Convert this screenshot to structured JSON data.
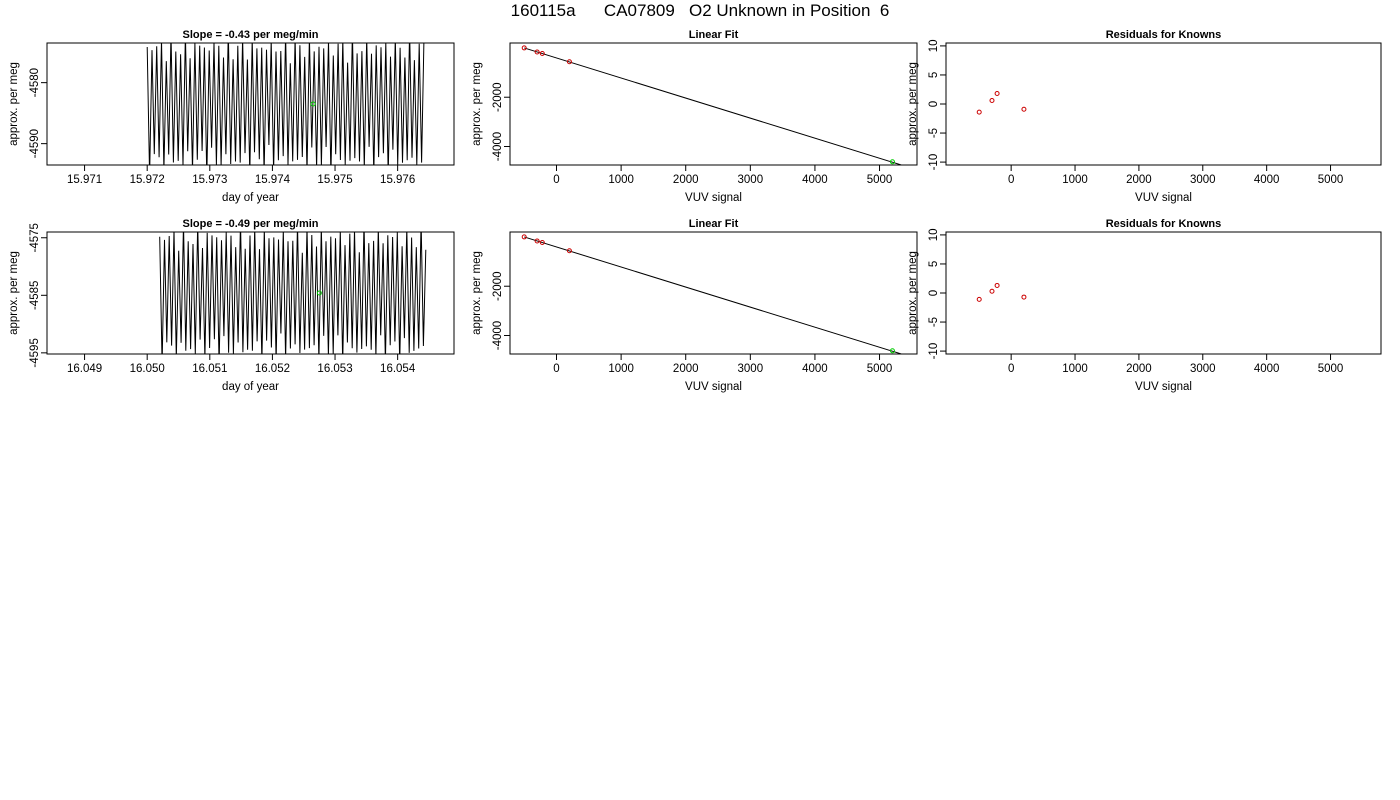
{
  "header": {
    "title": "160115a      CA07809   O2 Unknown in Position  6"
  },
  "colors": {
    "trace": "#000000",
    "known_point": "#cc0000",
    "unknown_point": "#00cc00",
    "frame": "#000000"
  },
  "chart_data": [
    {
      "type": "line",
      "id": "trace-top",
      "title": "Slope =  -0.43  per meg/min",
      "xlabel": "day of year",
      "ylabel": "approx. per meg",
      "xlim": [
        15.9704,
        15.9769
      ],
      "ylim": [
        -4593.5,
        -4573.5
      ],
      "xticks": [
        15.971,
        15.972,
        15.973,
        15.974,
        15.975,
        15.976
      ],
      "xtick_labels": [
        "15.971",
        "15.972",
        "15.973",
        "15.974",
        "15.975",
        "15.976"
      ],
      "yticks": [
        -4590,
        -4580
      ],
      "ytick_labels": [
        "-4590",
        "-4580"
      ],
      "trace": {
        "x_start": 15.972,
        "x_end": 15.97642,
        "oscillations": 58,
        "center": -4583.5,
        "amplitude": 11,
        "description_series": "oscillating signal"
      },
      "highlight_point": {
        "x": 15.97465,
        "y": -4583.5
      }
    },
    {
      "type": "scatter",
      "id": "fit-top",
      "title": "Linear Fit",
      "xlabel": "VUV signal",
      "ylabel": "approx. per meg",
      "xlim": [
        -720,
        5580
      ],
      "ylim": [
        -4750,
        200
      ],
      "xticks": [
        0,
        1000,
        2000,
        3000,
        4000,
        5000
      ],
      "xtick_labels": [
        "0",
        "1000",
        "2000",
        "3000",
        "4000",
        "5000"
      ],
      "yticks": [
        -4000,
        -2000
      ],
      "ytick_labels": [
        "-4000",
        "-2000"
      ],
      "line": {
        "x0": -500,
        "y0": 0,
        "x1": 5400,
        "y1": -4800
      },
      "known_points": [
        {
          "x": -500,
          "y": 0
        },
        {
          "x": -300,
          "y": -165
        },
        {
          "x": -220,
          "y": -225
        },
        {
          "x": 200,
          "y": -560
        }
      ],
      "unknown_points": [
        {
          "x": 5200,
          "y": -4620
        }
      ]
    },
    {
      "type": "scatter",
      "id": "resid-top",
      "title": "Residuals for Knowns",
      "xlabel": "VUV signal",
      "ylabel": "approx. per meg",
      "xlim": [
        -1020,
        5790
      ],
      "ylim": [
        -10.5,
        10.5
      ],
      "xticks": [
        0,
        1000,
        2000,
        3000,
        4000,
        5000
      ],
      "xtick_labels": [
        "0",
        "1000",
        "2000",
        "3000",
        "4000",
        "5000"
      ],
      "yticks": [
        -10,
        -5,
        0,
        5,
        10
      ],
      "ytick_labels": [
        "-10",
        "-5",
        "0",
        "5",
        "10"
      ],
      "points": [
        {
          "x": -500,
          "y": -1.4
        },
        {
          "x": -300,
          "y": 0.6
        },
        {
          "x": -220,
          "y": 1.8
        },
        {
          "x": 200,
          "y": -0.9
        }
      ]
    },
    {
      "type": "line",
      "id": "trace-bottom",
      "title": "Slope =  -0.49  per meg/min",
      "xlabel": "day of year",
      "ylabel": "approx. per meg",
      "xlim": [
        16.0484,
        16.0549
      ],
      "ylim": [
        -4595.2,
        -4574.0
      ],
      "xticks": [
        16.049,
        16.05,
        16.051,
        16.052,
        16.053,
        16.054
      ],
      "xtick_labels": [
        "16.049",
        "16.050",
        "16.051",
        "16.052",
        "16.053",
        "16.054"
      ],
      "yticks": [
        -4595,
        -4585,
        -4575
      ],
      "ytick_labels": [
        "-4595",
        "-4585",
        "-4575"
      ],
      "trace": {
        "x_start": 16.0502,
        "x_end": 16.05445,
        "oscillations": 56,
        "center": -4584.6,
        "amplitude": 11.5,
        "description_series": "oscillating signal"
      },
      "highlight_point": {
        "x": 16.05275,
        "y": -4584.6
      }
    },
    {
      "type": "scatter",
      "id": "fit-bottom",
      "title": "Linear Fit",
      "xlabel": "VUV signal",
      "ylabel": "approx. per meg",
      "xlim": [
        -720,
        5580
      ],
      "ylim": [
        -4750,
        200
      ],
      "xticks": [
        0,
        1000,
        2000,
        3000,
        4000,
        5000
      ],
      "xtick_labels": [
        "0",
        "1000",
        "2000",
        "3000",
        "4000",
        "5000"
      ],
      "yticks": [
        -4000,
        -2000
      ],
      "ytick_labels": [
        "-4000",
        "-2000"
      ],
      "line": {
        "x0": -500,
        "y0": 0,
        "x1": 5400,
        "y1": -4800
      },
      "known_points": [
        {
          "x": -500,
          "y": 0
        },
        {
          "x": -300,
          "y": -165
        },
        {
          "x": -220,
          "y": -225
        },
        {
          "x": 200,
          "y": -560
        }
      ],
      "unknown_points": [
        {
          "x": 5200,
          "y": -4620
        }
      ]
    },
    {
      "type": "scatter",
      "id": "resid-bottom",
      "title": "Residuals for Knowns",
      "xlabel": "VUV signal",
      "ylabel": "approx. per meg",
      "xlim": [
        -1020,
        5790
      ],
      "ylim": [
        -10.5,
        10.5
      ],
      "xticks": [
        0,
        1000,
        2000,
        3000,
        4000,
        5000
      ],
      "xtick_labels": [
        "0",
        "1000",
        "2000",
        "3000",
        "4000",
        "5000"
      ],
      "yticks": [
        -10,
        -5,
        0,
        5,
        10
      ],
      "ytick_labels": [
        "-10",
        "-5",
        "0",
        "5",
        "10"
      ],
      "points": [
        {
          "x": -500,
          "y": -1.1
        },
        {
          "x": -300,
          "y": 0.3
        },
        {
          "x": -220,
          "y": 1.3
        },
        {
          "x": 200,
          "y": -0.7
        }
      ]
    }
  ]
}
